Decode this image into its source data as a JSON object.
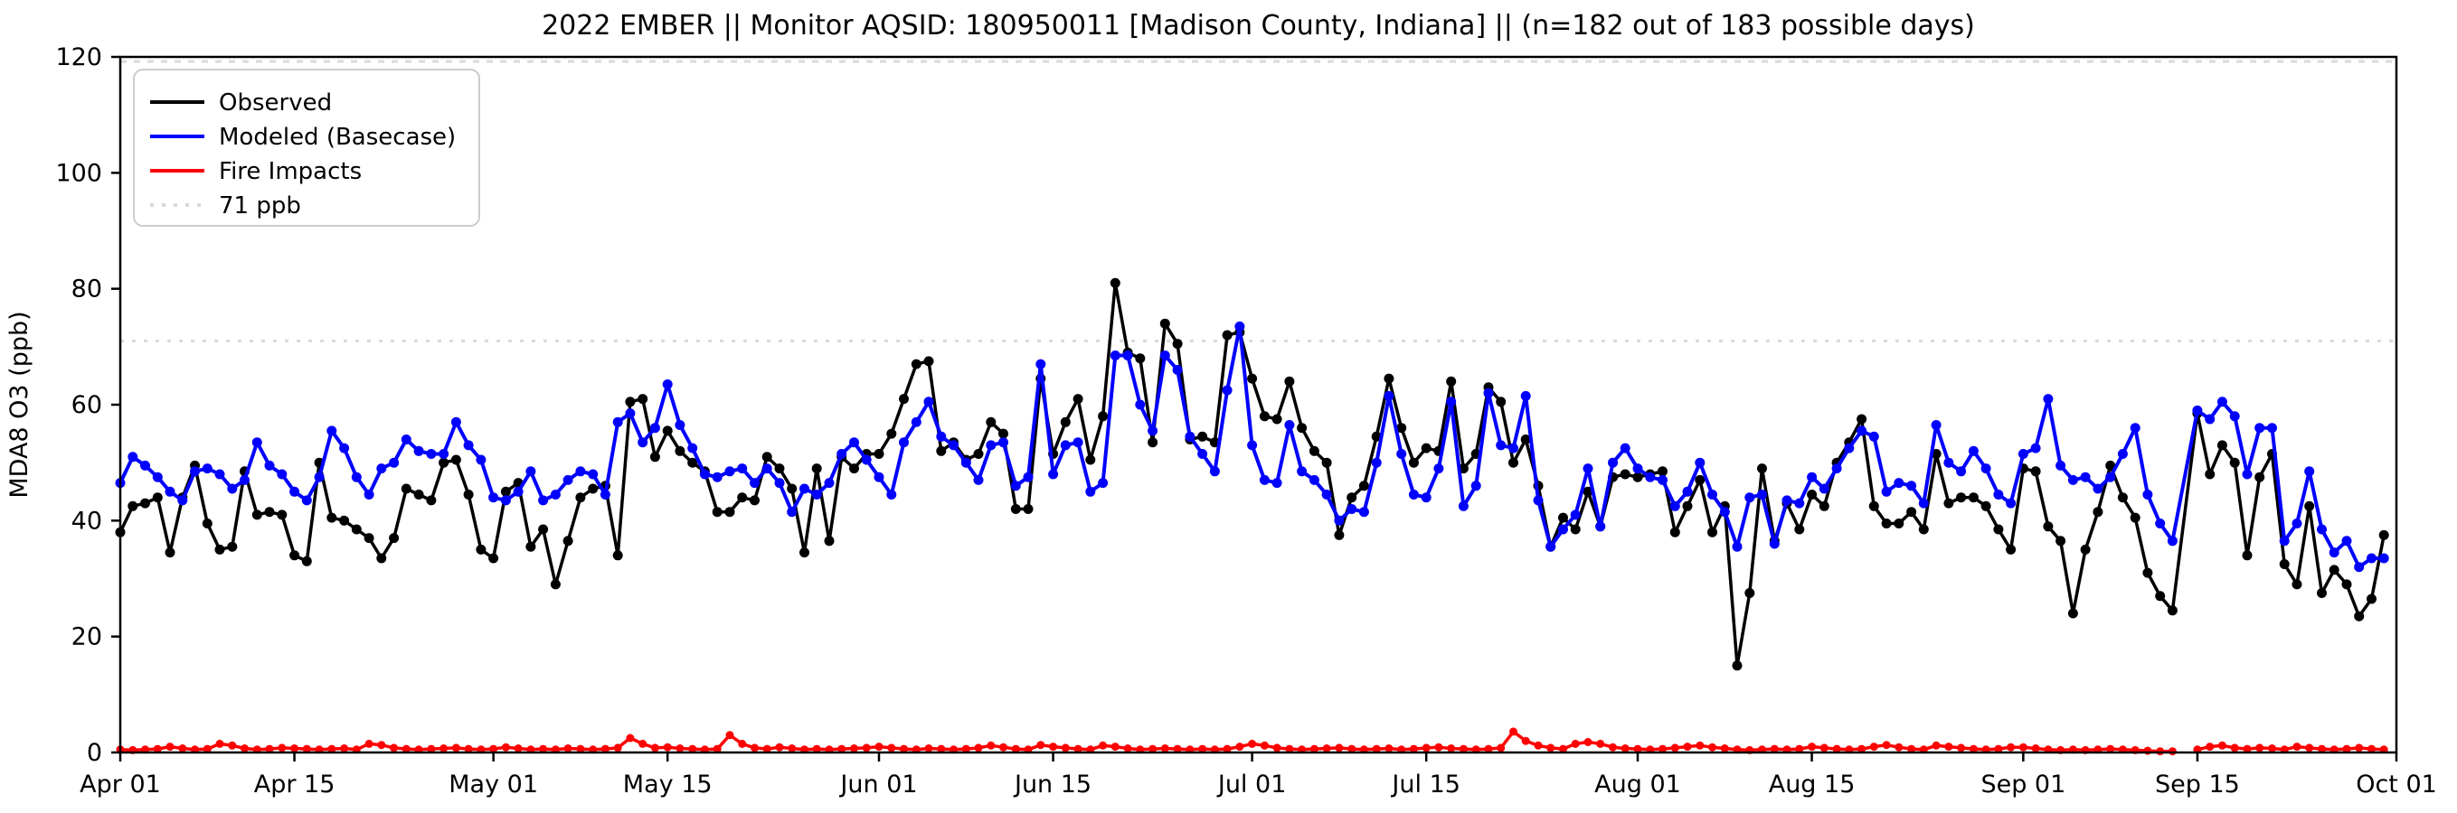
{
  "title": "2022 EMBER || Monitor AQSID: 180950011 [Madison County, Indiana] || (n=182 out of 183 possible days)",
  "axes": {
    "ylabel": "MDA8 O3 (ppb)",
    "ylim": [
      0,
      120
    ],
    "yticks": [
      0,
      20,
      40,
      60,
      80,
      100,
      120
    ],
    "xticks": [
      {
        "day": 0,
        "label": "Apr 01"
      },
      {
        "day": 14,
        "label": "Apr 15"
      },
      {
        "day": 30,
        "label": "May 01"
      },
      {
        "day": 44,
        "label": "May 15"
      },
      {
        "day": 61,
        "label": "Jun 01"
      },
      {
        "day": 75,
        "label": "Jun 15"
      },
      {
        "day": 91,
        "label": "Jul 01"
      },
      {
        "day": 105,
        "label": "Jul 15"
      },
      {
        "day": 122,
        "label": "Aug 01"
      },
      {
        "day": 136,
        "label": "Aug 15"
      },
      {
        "day": 153,
        "label": "Sep 01"
      },
      {
        "day": 167,
        "label": "Sep 15"
      },
      {
        "day": 183,
        "label": "Oct 01"
      }
    ],
    "total_days": 183
  },
  "legend": {
    "items": [
      {
        "label": "Observed",
        "color": "#000000",
        "style": "solid"
      },
      {
        "label": "Modeled (Basecase)",
        "color": "#0000ff",
        "style": "solid"
      },
      {
        "label": "Fire Impacts",
        "color": "#ff0000",
        "style": "solid"
      },
      {
        "label": "71 ppb",
        "color": "#d9d9d9",
        "style": "dotted"
      }
    ]
  },
  "chart_data": {
    "type": "line",
    "title": "2022 EMBER || Monitor AQSID: 180950011 [Madison County, Indiana] || (n=182 out of 183 possible days)",
    "xlabel": "",
    "ylabel": "MDA8 O3 (ppb)",
    "ylim": [
      0,
      120
    ],
    "x_range_days": 183,
    "x_start_label": "Apr 01",
    "x_end_label": "Oct 01",
    "grid": false,
    "legend_position": "upper left",
    "reference_line": {
      "value": 71,
      "label": "71 ppb",
      "color": "#d9d9d9",
      "style": "dotted"
    },
    "missing_day_index": 166,
    "series": [
      {
        "name": "Observed",
        "color": "#000000",
        "marker": "circle",
        "values": [
          38,
          42.5,
          43,
          44,
          34.5,
          44,
          49.5,
          39.5,
          35,
          35.5,
          48.5,
          41,
          41.5,
          41,
          34,
          33,
          50,
          40.5,
          40,
          38.5,
          37,
          33.5,
          37,
          45.5,
          44.5,
          43.5,
          50,
          50.5,
          44.5,
          35,
          33.5,
          45,
          46.5,
          35.5,
          38.5,
          29,
          36.5,
          44,
          45.5,
          46,
          34,
          60.5,
          61,
          51,
          55.5,
          52,
          50,
          48.5,
          41.5,
          41.5,
          44,
          43.5,
          51,
          49,
          45.5,
          34.5,
          49,
          36.5,
          51,
          49,
          51.5,
          51.5,
          55,
          61,
          67,
          67.5,
          52,
          53.5,
          50.5,
          51.5,
          57,
          55,
          42,
          42,
          64.5,
          51.5,
          57,
          61,
          50.5,
          58,
          81,
          69,
          68,
          53.5,
          74,
          70.5,
          54,
          54.5,
          53.5,
          72,
          72.5,
          64.5,
          58,
          57.5,
          64,
          56,
          52,
          50,
          37.5,
          44,
          46,
          54.5,
          64.5,
          56,
          50,
          52.5,
          52,
          64,
          49,
          51.5,
          63,
          60.5,
          50,
          54,
          46,
          35.5,
          40.5,
          38.5,
          45,
          39,
          47.5,
          48,
          47.5,
          48,
          48.5,
          38,
          42.5,
          47,
          38,
          42.5,
          15,
          27.5,
          49,
          36.5,
          43,
          38.5,
          44.5,
          42.5,
          50,
          53.5,
          57.5,
          42.5,
          39.5,
          39.5,
          41.5,
          38.5,
          51.5,
          43,
          44,
          44,
          42.5,
          38.5,
          35,
          49,
          48.5,
          39,
          36.5,
          24,
          35,
          41.5,
          49.5,
          44,
          40.5,
          31,
          27,
          24.5,
          null,
          58.5,
          48,
          53,
          50,
          34,
          47.5,
          51.5,
          32.5,
          29,
          42.5,
          27.5,
          31.5,
          29,
          23.5,
          26.5,
          37.5
        ]
      },
      {
        "name": "Modeled (Basecase)",
        "color": "#0000ff",
        "marker": "circle",
        "values": [
          46.5,
          51,
          49.5,
          47.5,
          45,
          43.5,
          48.5,
          49,
          48,
          45.5,
          47,
          53.5,
          49.5,
          48,
          45,
          43.5,
          47.5,
          55.5,
          52.5,
          47.5,
          44.5,
          49,
          50,
          54,
          52,
          51.5,
          51.5,
          57,
          53,
          50.5,
          44,
          43.5,
          45,
          48.5,
          43.5,
          44.5,
          47,
          48.5,
          48,
          44.5,
          57,
          58.5,
          53.5,
          56,
          63.5,
          56.5,
          52.5,
          48,
          47.5,
          48.5,
          49,
          46.5,
          49,
          46.5,
          41.5,
          45.5,
          44.5,
          46.5,
          51.5,
          53.5,
          50.5,
          47.5,
          44.5,
          53.5,
          57,
          60.5,
          54.5,
          53,
          50,
          47,
          53,
          53.5,
          46,
          47.5,
          67,
          48,
          53,
          53.5,
          45,
          46.5,
          68.5,
          68.5,
          60,
          55.5,
          68.5,
          66,
          54.5,
          51.5,
          48.5,
          62.5,
          73.5,
          53,
          47,
          46.5,
          56.5,
          48.5,
          47,
          44.5,
          40,
          42,
          41.5,
          50,
          61.5,
          51.5,
          44.5,
          44,
          49,
          60.5,
          42.5,
          46,
          62,
          53,
          52.5,
          61.5,
          43.5,
          35.5,
          38.5,
          41,
          49,
          39,
          50,
          52.5,
          49,
          47.5,
          47,
          42.5,
          45,
          50,
          44.5,
          41.5,
          35.5,
          44,
          44.5,
          36,
          43.5,
          43,
          47.5,
          45.5,
          49,
          52.5,
          55.5,
          54.5,
          45,
          46.5,
          46,
          43,
          56.5,
          50,
          48.5,
          52,
          49,
          44.5,
          43,
          51.5,
          52.5,
          61,
          49.5,
          47,
          47.5,
          45.5,
          47.5,
          51.5,
          56,
          44.5,
          39.5,
          36.5,
          null,
          59,
          57.5,
          60.5,
          58,
          48,
          56,
          56,
          36.5,
          39.5,
          48.5,
          38.5,
          34.5,
          36.5,
          32,
          33.5,
          33.5
        ]
      },
      {
        "name": "Fire Impacts",
        "color": "#ff0000",
        "marker": "circle",
        "values": [
          0.5,
          0.4,
          0.5,
          0.6,
          1,
          0.7,
          0.5,
          0.6,
          1.5,
          1.2,
          0.7,
          0.5,
          0.6,
          0.8,
          0.7,
          0.6,
          0.5,
          0.6,
          0.7,
          0.5,
          1.5,
          1.3,
          0.8,
          0.6,
          0.5,
          0.6,
          0.7,
          0.8,
          0.6,
          0.5,
          0.6,
          0.9,
          0.7,
          0.5,
          0.6,
          0.5,
          0.7,
          0.6,
          0.5,
          0.6,
          0.8,
          2.5,
          1.5,
          0.8,
          0.9,
          0.7,
          0.6,
          0.5,
          0.6,
          3,
          1.5,
          0.8,
          0.6,
          0.9,
          0.7,
          0.5,
          0.6,
          0.5,
          0.6,
          0.7,
          0.8,
          1,
          0.8,
          0.6,
          0.5,
          0.7,
          0.6,
          0.5,
          0.6,
          0.8,
          1.2,
          0.9,
          0.6,
          0.5,
          1.3,
          1,
          0.8,
          0.6,
          0.5,
          1.2,
          1,
          0.7,
          0.5,
          0.6,
          0.7,
          0.6,
          0.5,
          0.6,
          0.5,
          0.6,
          1,
          1.5,
          1.2,
          0.8,
          0.6,
          0.5,
          0.6,
          0.7,
          0.8,
          0.6,
          0.5,
          0.6,
          0.7,
          0.5,
          0.6,
          0.8,
          0.9,
          0.7,
          0.6,
          0.5,
          0.6,
          0.8,
          3.6,
          2,
          1.2,
          0.8,
          0.6,
          1.5,
          1.8,
          1.5,
          0.9,
          0.7,
          0.6,
          0.5,
          0.6,
          0.8,
          1,
          1.2,
          0.9,
          0.7,
          0.5,
          0.4,
          0.5,
          0.6,
          0.5,
          0.6,
          1,
          0.8,
          0.6,
          0.5,
          0.6,
          1,
          1.3,
          0.9,
          0.6,
          0.5,
          1.2,
          1,
          0.8,
          0.6,
          0.5,
          0.6,
          0.9,
          0.9,
          0.7,
          0.5,
          0.4,
          0.5,
          0.4,
          0.5,
          0.6,
          0.5,
          0.4,
          0.3,
          0.2,
          0.2,
          null,
          0.5,
          1,
          1.2,
          0.8,
          0.6,
          0.8,
          0.7,
          0.5,
          1,
          0.8,
          0.6,
          0.5,
          0.6,
          0.8,
          0.6,
          0.5
        ]
      }
    ]
  }
}
